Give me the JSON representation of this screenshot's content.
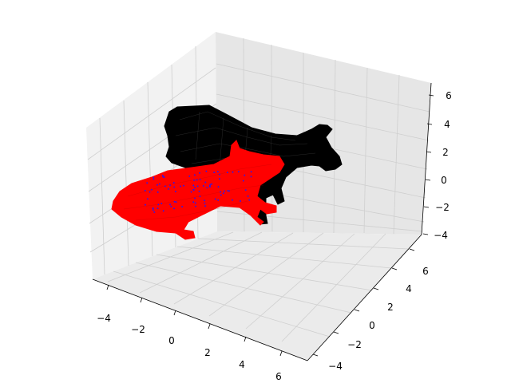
{
  "chart_data": {
    "type": "3d-wireframe-mesh",
    "title": "",
    "xlabel": "",
    "ylabel": "",
    "zlabel": "",
    "grid": true,
    "legend": "none",
    "x_ticks": [
      "−4",
      "−2",
      "0",
      "2",
      "4",
      "6"
    ],
    "y_ticks": [
      "−4",
      "−2",
      "0",
      "2",
      "4",
      "6"
    ],
    "z_ticks": [
      "−4",
      "−2",
      "0",
      "2",
      "4",
      "6"
    ],
    "xlim": [
      -5,
      7
    ],
    "ylim": [
      -5,
      7
    ],
    "zlim": [
      -4.5,
      6.5
    ],
    "series": [
      {
        "key": "black-mesh",
        "color": "#000000",
        "description_word": "cow mesh, standing"
      },
      {
        "key": "red-mesh",
        "color": "#ff0000",
        "description_word": "cow mesh, lying (transformed)"
      },
      {
        "key": "blue-points",
        "color": "#1a1aff",
        "description_word": "points inside red mesh"
      }
    ]
  }
}
